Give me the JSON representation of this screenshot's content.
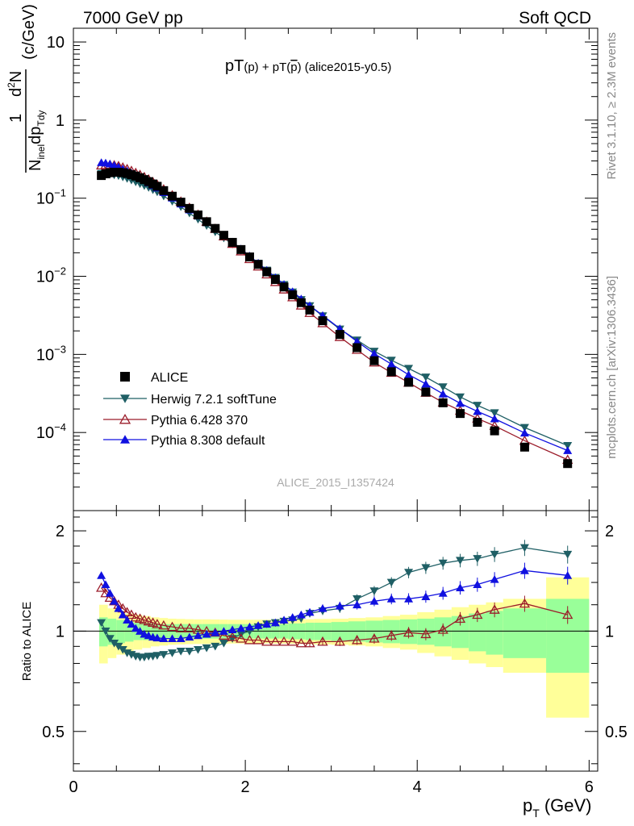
{
  "header": {
    "left": "7000 GeV pp",
    "right": "Soft QCD"
  },
  "title_parts": {
    "a": "pT",
    "b": "(p)",
    "c": " + pT",
    "d": "(",
    "e": "p",
    "f": ")",
    "g": " (alice2015-y0.5)"
  },
  "ylabel_parts": {
    "num1": "1",
    "num2": "d",
    "num3": "2",
    "num4": "N",
    "den1": "N",
    "den2": "inel",
    "den3": "dp",
    "den4": "Tdy",
    "unit": "(c/GeV)"
  },
  "xlabel_parts": {
    "main": "p",
    "sub": "T",
    "unit": "(GeV)"
  },
  "ratio_ylabel": "Ratio to ALICE",
  "side_text": {
    "rivet": "Rivet 3.1.10, ≥ 2.3M events",
    "mcplots": "mcplots.cern.ch [arXiv:1306.3436]"
  },
  "watermark": "ALICE_2015_I1357424",
  "top_ticks": [
    {
      "value": 10,
      "label": "10"
    },
    {
      "value": 1,
      "label": "1"
    },
    {
      "value": 0.1,
      "base": "10",
      "exp": "−1"
    },
    {
      "value": 0.01,
      "base": "10",
      "exp": "−2"
    },
    {
      "value": 0.001,
      "base": "10",
      "exp": "−3"
    },
    {
      "value": 0.0001,
      "base": "10",
      "exp": "−4"
    }
  ],
  "ratio_ticks": [
    {
      "value": 0.5,
      "label": "0.5"
    },
    {
      "value": 1,
      "label": "1"
    },
    {
      "value": 2,
      "label": "2"
    }
  ],
  "x_ticks": [
    {
      "value": 0,
      "label": "0"
    },
    {
      "value": 2,
      "label": "2"
    },
    {
      "value": 4,
      "label": "4"
    },
    {
      "value": 6,
      "label": "6"
    }
  ],
  "chart_data": {
    "type": "scatter",
    "title": "pT(p) + pT(p̄) (alice2015-y0.5)",
    "xlabel": "pT (GeV)",
    "ylabel": "1/Ninel d2N/dpTdy (c/GeV)",
    "ratio_ylabel": "Ratio to ALICE",
    "x_range": [
      0,
      6.1
    ],
    "y_range": [
      1e-05,
      15
    ],
    "y_scale": "log",
    "ratio_y_range": [
      0.38,
      2.3
    ],
    "ratio_y_scale": "log",
    "legend_position": "bottom-left",
    "x": [
      0.325,
      0.375,
      0.425,
      0.475,
      0.525,
      0.575,
      0.625,
      0.675,
      0.725,
      0.775,
      0.825,
      0.875,
      0.925,
      0.975,
      1.05,
      1.15,
      1.25,
      1.35,
      1.45,
      1.55,
      1.65,
      1.75,
      1.85,
      1.95,
      2.05,
      2.15,
      2.25,
      2.35,
      2.45,
      2.55,
      2.65,
      2.75,
      2.9,
      3.1,
      3.3,
      3.5,
      3.7,
      3.9,
      4.1,
      4.3,
      4.5,
      4.7,
      4.9,
      5.25,
      5.75
    ],
    "series": [
      {
        "name": "ALICE",
        "marker": "filled-square",
        "color": "#000000",
        "values": [
          0.195,
          0.205,
          0.212,
          0.215,
          0.215,
          0.212,
          0.207,
          0.2,
          0.192,
          0.183,
          0.173,
          0.163,
          0.152,
          0.142,
          0.125,
          0.106,
          0.089,
          0.074,
          0.061,
          0.05,
          0.041,
          0.0335,
          0.0272,
          0.022,
          0.0177,
          0.0142,
          0.0114,
          0.0091,
          0.0073,
          0.0058,
          0.0046,
          0.0037,
          0.0027,
          0.0018,
          0.00122,
          0.00083,
          0.0006,
          0.00044,
          0.00033,
          0.00024,
          0.000175,
          0.000135,
          0.000105,
          6.5e-05,
          4e-05
        ],
        "band_x_edges": [
          0.3,
          0.4,
          0.5,
          0.6,
          0.7,
          0.8,
          0.9,
          1.0,
          1.1,
          1.2,
          1.3,
          1.4,
          1.5,
          1.6,
          1.7,
          1.8,
          1.9,
          2.0,
          2.1,
          2.2,
          2.3,
          2.4,
          2.5,
          2.6,
          2.7,
          2.8,
          3.0,
          3.2,
          3.4,
          3.6,
          3.8,
          4.0,
          4.2,
          4.4,
          4.6,
          4.8,
          5.0,
          5.5,
          6.0
        ],
        "stat_syst_outer": [
          0.2,
          0.17,
          0.15,
          0.13,
          0.12,
          0.11,
          0.1,
          0.095,
          0.09,
          0.088,
          0.086,
          0.085,
          0.085,
          0.084,
          0.083,
          0.082,
          0.082,
          0.082,
          0.082,
          0.082,
          0.083,
          0.083,
          0.084,
          0.085,
          0.086,
          0.088,
          0.09,
          0.095,
          0.1,
          0.11,
          0.12,
          0.14,
          0.16,
          0.18,
          0.2,
          0.22,
          0.25,
          0.45
        ],
        "stat_syst_inner": [
          0.1,
          0.09,
          0.08,
          0.07,
          0.06,
          0.06,
          0.055,
          0.05,
          0.05,
          0.05,
          0.05,
          0.05,
          0.05,
          0.05,
          0.05,
          0.05,
          0.05,
          0.05,
          0.05,
          0.05,
          0.05,
          0.05,
          0.055,
          0.055,
          0.06,
          0.06,
          0.065,
          0.07,
          0.075,
          0.08,
          0.085,
          0.09,
          0.1,
          0.11,
          0.13,
          0.15,
          0.17,
          0.25
        ]
      },
      {
        "name": "Herwig 7.2.1 softTune",
        "marker": "filled-triangle-down",
        "color": "#1f5f65",
        "ratio": [
          1.06,
          1.0,
          0.95,
          0.92,
          0.9,
          0.88,
          0.86,
          0.85,
          0.84,
          0.835,
          0.835,
          0.84,
          0.84,
          0.845,
          0.85,
          0.86,
          0.87,
          0.87,
          0.88,
          0.89,
          0.9,
          0.92,
          0.95,
          0.98,
          1.0,
          1.03,
          1.05,
          1.06,
          1.07,
          1.08,
          1.09,
          1.13,
          1.15,
          1.17,
          1.25,
          1.32,
          1.4,
          1.5,
          1.55,
          1.6,
          1.63,
          1.65,
          1.7,
          1.78,
          1.7
        ]
      },
      {
        "name": "Pythia 6.428 370",
        "marker": "open-triangle-up",
        "color": "#9b1c2a",
        "ratio": [
          1.35,
          1.3,
          1.26,
          1.23,
          1.2,
          1.17,
          1.14,
          1.12,
          1.1,
          1.09,
          1.08,
          1.07,
          1.06,
          1.05,
          1.04,
          1.03,
          1.02,
          1.02,
          1.01,
          1.0,
          0.99,
          0.97,
          0.96,
          0.95,
          0.94,
          0.94,
          0.93,
          0.93,
          0.93,
          0.93,
          0.92,
          0.92,
          0.93,
          0.93,
          0.94,
          0.95,
          0.97,
          0.99,
          0.98,
          1.01,
          1.09,
          1.12,
          1.16,
          1.21,
          1.12
        ]
      },
      {
        "name": "Pythia 8.308 default",
        "marker": "filled-triangle-up",
        "color": "#1010e0",
        "ratio": [
          1.47,
          1.38,
          1.3,
          1.23,
          1.17,
          1.12,
          1.08,
          1.05,
          1.02,
          1.0,
          0.98,
          0.97,
          0.96,
          0.955,
          0.95,
          0.95,
          0.95,
          0.96,
          0.97,
          0.98,
          0.99,
          1.0,
          1.01,
          1.02,
          1.03,
          1.04,
          1.05,
          1.06,
          1.08,
          1.1,
          1.12,
          1.14,
          1.17,
          1.19,
          1.2,
          1.23,
          1.25,
          1.25,
          1.27,
          1.3,
          1.35,
          1.38,
          1.43,
          1.52,
          1.47
        ]
      }
    ]
  }
}
